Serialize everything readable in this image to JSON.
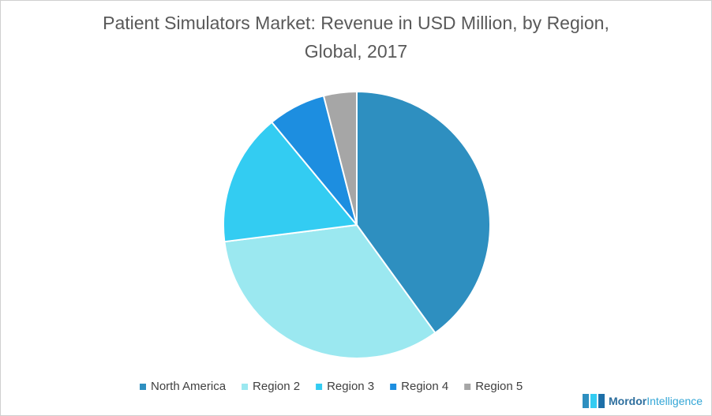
{
  "chart_data": {
    "type": "pie",
    "title": "Patient Simulators Market: Revenue in USD Million, by Region, Global, 2017",
    "categories": [
      "North America",
      "Region 2",
      "Region 3",
      "Region 4",
      "Region 5"
    ],
    "values": [
      40,
      33,
      16,
      7,
      4
    ],
    "colors": [
      "#2e8fc0",
      "#9be8f0",
      "#33ccf2",
      "#1d8ee0",
      "#a6a6a6"
    ],
    "legend": "bottom"
  },
  "logo": [
    "Mordor",
    "Intelligence"
  ]
}
